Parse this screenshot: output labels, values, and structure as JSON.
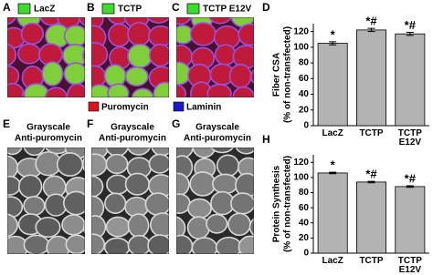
{
  "panels": [
    {
      "letter": "A",
      "label": "LacZ"
    },
    {
      "letter": "B",
      "label": "TCTP"
    },
    {
      "letter": "C",
      "label": "TCTP E12V"
    },
    {
      "letter": "E",
      "label": [
        "Grayscale",
        "Anti-puromycin"
      ]
    },
    {
      "letter": "F",
      "label": [
        "Grayscale",
        "Anti-puromycin"
      ]
    },
    {
      "letter": "G",
      "label": [
        "Grayscale",
        "Anti-puromycin"
      ]
    }
  ],
  "legend": [
    "Puromycin",
    "Laminin"
  ],
  "chart_data": [
    {
      "type": "bar",
      "panel": "D",
      "ylabel": [
        "Fiber CSA",
        "(% of non-transfected)"
      ],
      "categories": [
        "LacZ",
        "TCTP",
        "TCTP E12V"
      ],
      "values": [
        105,
        122,
        117
      ],
      "errors": [
        2,
        2,
        2
      ],
      "annotations": [
        "*",
        "*#",
        "*#"
      ],
      "color": "#b3b3b3",
      "ylim": [
        0,
        130
      ],
      "yticks": [
        0,
        20,
        40,
        60,
        80,
        100,
        120
      ]
    },
    {
      "type": "bar",
      "panel": "H",
      "ylabel": [
        "Protein Synthesis",
        "(% of non-transfected)"
      ],
      "categories": [
        "LacZ",
        "TCTP",
        "TCTP E12V"
      ],
      "values": [
        106,
        94,
        88
      ],
      "errors": [
        1,
        1,
        1
      ],
      "annotations": [
        "*",
        "*#",
        "*#"
      ],
      "color": "#b3b3b3",
      "ylim": [
        0,
        130
      ],
      "yticks": [
        0,
        20,
        40,
        60,
        80,
        100,
        120
      ]
    }
  ]
}
